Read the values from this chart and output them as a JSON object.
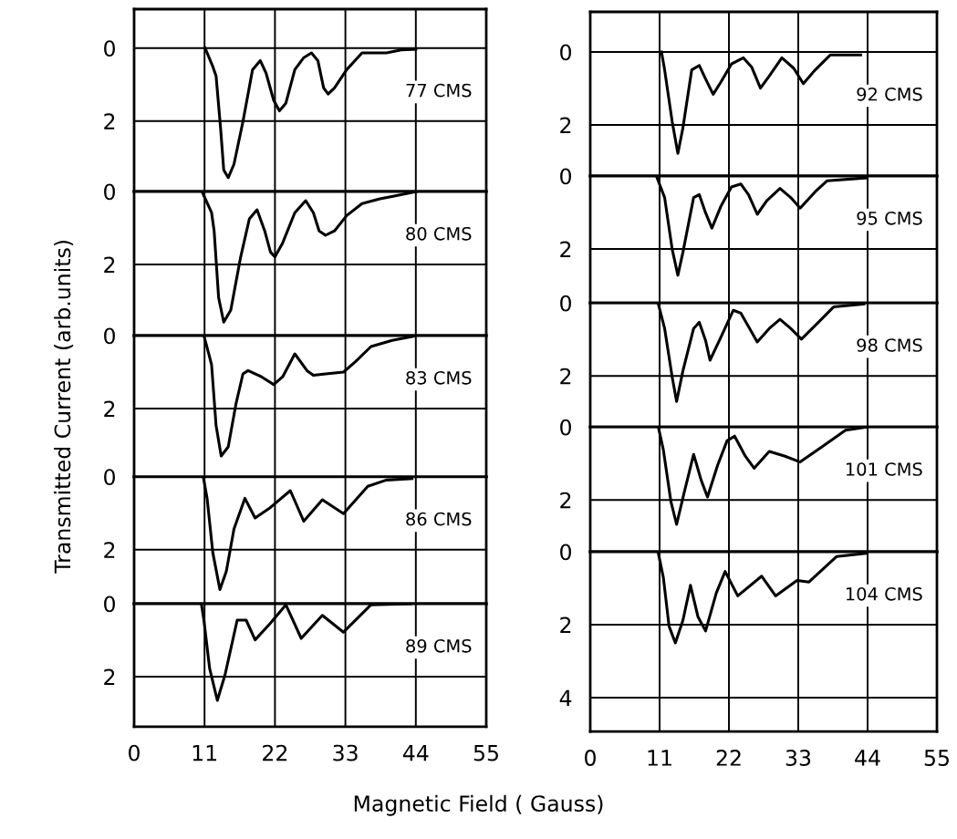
{
  "chart_data": [
    {
      "type": "line",
      "xlim": [
        0,
        55
      ],
      "xticks": [
        0,
        11,
        22,
        33,
        44,
        55
      ],
      "ylim": [
        3.93,
        -1.07
      ],
      "yticks": [
        0,
        2
      ],
      "tick_labels": "y",
      "grid": true,
      "marker": "none",
      "line_style": "solid",
      "series": [
        {
          "name": "77 CMS",
          "color": "#000000",
          "x": [
            11.1,
            12.3,
            12.8,
            13.5,
            14.0,
            14.7,
            15.6,
            17.0,
            18.5,
            19.7,
            20.6,
            21.8,
            22.7,
            23.7,
            25.1,
            26.5,
            27.7,
            28.7,
            29.6,
            30.3,
            31.3,
            33.2,
            35.6,
            39.4,
            41.7,
            44.0
          ],
          "values": [
            0,
            0.51,
            0.76,
            2.18,
            3.34,
            3.55,
            3.18,
            2.01,
            0.59,
            0.34,
            0.68,
            1.43,
            1.72,
            1.51,
            0.59,
            0.26,
            0.13,
            0.34,
            1.09,
            1.26,
            1.09,
            0.59,
            0.13,
            0.13,
            0.05,
            0.03
          ]
        }
      ]
    },
    {
      "type": "line",
      "xlim": [
        0,
        55
      ],
      "xticks": [
        0,
        11,
        22,
        33,
        44,
        55
      ],
      "ylim": [
        3.95,
        0
      ],
      "yticks": [
        0,
        2
      ],
      "tick_labels": "y",
      "grid": true,
      "marker": "none",
      "line_style": "solid",
      "series": [
        {
          "name": "80 CMS",
          "color": "#000000",
          "x": [
            10.6,
            12.1,
            12.5,
            13.2,
            14.0,
            15.1,
            16.6,
            18.0,
            19.2,
            20.4,
            21.3,
            22.0,
            23.2,
            25.1,
            26.8,
            28.0,
            28.9,
            29.9,
            31.3,
            33.2,
            35.6,
            38.4,
            40.8,
            44.1
          ],
          "values": [
            0,
            0.58,
            1.08,
            2.91,
            3.58,
            3.25,
            1.83,
            0.75,
            0.5,
            1.08,
            1.66,
            1.79,
            1.41,
            0.58,
            0.25,
            0.58,
            1.08,
            1.2,
            1.08,
            0.66,
            0.33,
            0.2,
            0.12,
            0
          ]
        }
      ]
    },
    {
      "type": "line",
      "ylabel": "Transmitted Current (arb.units)",
      "xlim": [
        0,
        55
      ],
      "xticks": [
        0,
        11,
        22,
        33,
        44,
        55
      ],
      "ylim": [
        3.87,
        0
      ],
      "yticks": [
        0,
        2
      ],
      "tick_labels": "y",
      "grid": true,
      "marker": "none",
      "line_style": "solid",
      "series": [
        {
          "name": "83 CMS",
          "color": "#000000",
          "x": [
            10.9,
            11.6,
            12.1,
            12.8,
            13.6,
            14.7,
            15.9,
            17.0,
            17.8,
            19.9,
            21.8,
            23.2,
            25.1,
            27.0,
            28.0,
            29.9,
            32.7,
            34.6,
            37.0,
            40.3,
            43.6
          ],
          "values": [
            0,
            0.46,
            0.8,
            2.46,
            3.3,
            3.05,
            1.88,
            1.05,
            0.96,
            1.13,
            1.34,
            1.13,
            0.5,
            0.96,
            1.09,
            1.05,
            1.0,
            0.71,
            0.3,
            0.13,
            0.02
          ]
        }
      ]
    },
    {
      "type": "line",
      "xlim": [
        0,
        55
      ],
      "xticks": [
        0,
        11,
        22,
        33,
        44,
        55
      ],
      "ylim": [
        3.48,
        0
      ],
      "yticks": [
        0,
        2
      ],
      "tick_labels": "y",
      "grid": true,
      "marker": "none",
      "line_style": "solid",
      "series": [
        {
          "name": "86 CMS",
          "color": "#000000",
          "x": [
            10.8,
            11.4,
            12.3,
            13.4,
            14.4,
            15.6,
            17.3,
            18.9,
            21.3,
            24.4,
            26.5,
            29.4,
            32.7,
            36.5,
            39.4,
            43.4
          ],
          "values": [
            0,
            0.59,
            2.09,
            3.09,
            2.59,
            1.43,
            0.59,
            1.13,
            0.84,
            0.38,
            1.22,
            0.63,
            1.01,
            0.26,
            0.09,
            0.05
          ]
        }
      ]
    },
    {
      "type": "line",
      "xlabel": "Magnetic Field ( Gauss)",
      "xlim": [
        0,
        55
      ],
      "xticks": [
        0,
        11,
        22,
        33,
        44,
        55
      ],
      "ylim": [
        3.37,
        0
      ],
      "yticks": [
        0,
        2
      ],
      "grid": true,
      "marker": "none",
      "line_style": "solid",
      "series": [
        {
          "name": "89 CMS",
          "color": "#000000",
          "x": [
            10.5,
            10.9,
            11.8,
            13.0,
            14.2,
            16.1,
            17.5,
            18.9,
            21.3,
            23.7,
            26.1,
            29.4,
            32.7,
            37.0,
            43.2
          ],
          "values": [
            0,
            0.45,
            1.78,
            2.65,
            1.95,
            0.45,
            0.45,
            0.99,
            0.53,
            0.03,
            0.95,
            0.32,
            0.78,
            0.03,
            0
          ]
        }
      ]
    },
    {
      "type": "line",
      "xlim": [
        0,
        55
      ],
      "xticks": [
        0,
        11,
        22,
        33,
        44,
        55
      ],
      "ylim": [
        3.4,
        -1.1
      ],
      "yticks": [
        0,
        2
      ],
      "tick_labels": "y",
      "grid": true,
      "marker": "none",
      "line_style": "solid",
      "series": [
        {
          "name": "92 CMS",
          "color": "#000000",
          "x": [
            11.3,
            11.8,
            13.0,
            13.9,
            14.7,
            16.1,
            17.3,
            18.3,
            19.5,
            20.7,
            22.4,
            24.3,
            25.6,
            27.0,
            28.4,
            30.4,
            32.3,
            33.8,
            35.7,
            38.1,
            42.9
          ],
          "values": [
            0,
            0.49,
            1.91,
            2.78,
            2.08,
            0.49,
            0.37,
            0.74,
            1.16,
            0.83,
            0.33,
            0.16,
            0.41,
            0.99,
            0.66,
            0.16,
            0.45,
            0.87,
            0.49,
            0.08,
            0.08
          ]
        }
      ]
    },
    {
      "type": "line",
      "xlim": [
        0,
        55
      ],
      "xticks": [
        0,
        11,
        22,
        33,
        44,
        55
      ],
      "ylim": [
        3.48,
        0
      ],
      "yticks": [
        0,
        2
      ],
      "tick_labels": "y",
      "grid": true,
      "marker": "none",
      "line_style": "solid",
      "series": [
        {
          "name": "95 CMS",
          "color": "#000000",
          "x": [
            10.6,
            11.8,
            13.0,
            13.9,
            14.7,
            16.4,
            17.3,
            18.3,
            19.3,
            20.7,
            22.4,
            23.9,
            25.1,
            26.5,
            28.0,
            30.1,
            31.8,
            33.3,
            35.7,
            37.6,
            43.9
          ],
          "values": [
            0.05,
            0.59,
            2.01,
            2.72,
            2.09,
            0.59,
            0.51,
            1.01,
            1.43,
            0.84,
            0.3,
            0.22,
            0.51,
            1.05,
            0.68,
            0.34,
            0.59,
            0.88,
            0.43,
            0.13,
            0.05
          ]
        }
      ]
    },
    {
      "type": "line",
      "xlim": [
        0,
        55
      ],
      "xticks": [
        0,
        11,
        22,
        33,
        44,
        55
      ],
      "ylim": [
        3.4,
        0
      ],
      "yticks": [
        0,
        2
      ],
      "tick_labels": "y",
      "grid": true,
      "marker": "none",
      "line_style": "solid",
      "series": [
        {
          "name": "98 CMS",
          "color": "#000000",
          "x": [
            10.8,
            11.8,
            13.0,
            13.7,
            14.7,
            16.4,
            17.3,
            18.3,
            19.0,
            20.7,
            22.7,
            23.9,
            26.5,
            28.4,
            30.1,
            31.8,
            33.5,
            36.2,
            38.6,
            43.4
          ],
          "values": [
            0.03,
            0.7,
            2.03,
            2.7,
            1.86,
            0.7,
            0.53,
            1.03,
            1.57,
            0.95,
            0.2,
            0.28,
            1.07,
            0.7,
            0.45,
            0.7,
            0.99,
            0.53,
            0.11,
            0.03
          ]
        }
      ]
    },
    {
      "type": "line",
      "xlim": [
        0,
        55
      ],
      "xticks": [
        0,
        11,
        22,
        33,
        44,
        55
      ],
      "ylim": [
        3.42,
        0
      ],
      "yticks": [
        0,
        2
      ],
      "tick_labels": "y",
      "grid": true,
      "marker": "none",
      "line_style": "solid",
      "series": [
        {
          "name": "101 CMS",
          "color": "#000000",
          "x": [
            10.8,
            11.6,
            12.8,
            13.7,
            14.9,
            16.4,
            17.6,
            18.6,
            20.2,
            21.7,
            22.9,
            24.6,
            26.0,
            28.4,
            30.9,
            33.3,
            36.7,
            40.5,
            43.9
          ],
          "values": [
            0,
            0.63,
            2.05,
            2.67,
            1.8,
            0.75,
            1.46,
            1.92,
            1.05,
            0.38,
            0.25,
            0.8,
            1.13,
            0.67,
            0.8,
            0.96,
            0.55,
            0.09,
            0
          ]
        }
      ]
    },
    {
      "type": "line",
      "xlim": [
        0,
        55
      ],
      "xticks": [
        0,
        11,
        22,
        33,
        44,
        55
      ],
      "ylim": [
        4.93,
        0
      ],
      "yticks": [
        0,
        2,
        4
      ],
      "grid": true,
      "marker": "none",
      "line_style": "solid",
      "series": [
        {
          "name": "104 CMS",
          "color": "#000000",
          "x": [
            10.8,
            11.6,
            12.5,
            13.5,
            14.7,
            15.9,
            17.1,
            18.3,
            20.0,
            21.4,
            23.4,
            27.2,
            29.4,
            32.8,
            34.7,
            39.1,
            43.9
          ],
          "values": [
            0.04,
            0.71,
            2.04,
            2.5,
            1.88,
            0.92,
            1.79,
            2.17,
            1.13,
            0.54,
            1.21,
            0.67,
            1.21,
            0.79,
            0.83,
            0.13,
            0.04
          ]
        }
      ]
    }
  ]
}
